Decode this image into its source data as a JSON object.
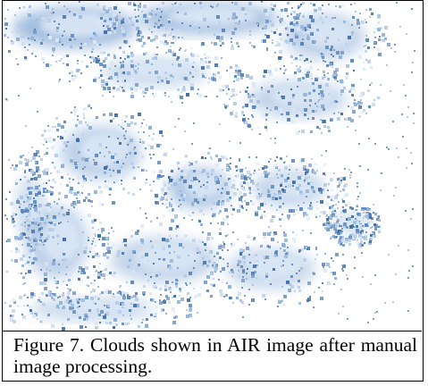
{
  "figure": {
    "caption": "Figure 7. Clouds shown in AIR image after manual image processing.",
    "image_description_colors": {
      "cloud_dark": "#3f6fa8",
      "cloud_mid": "#8fb0d8",
      "cloud_light": "#dbe7f5",
      "background": "#ffffff"
    }
  }
}
